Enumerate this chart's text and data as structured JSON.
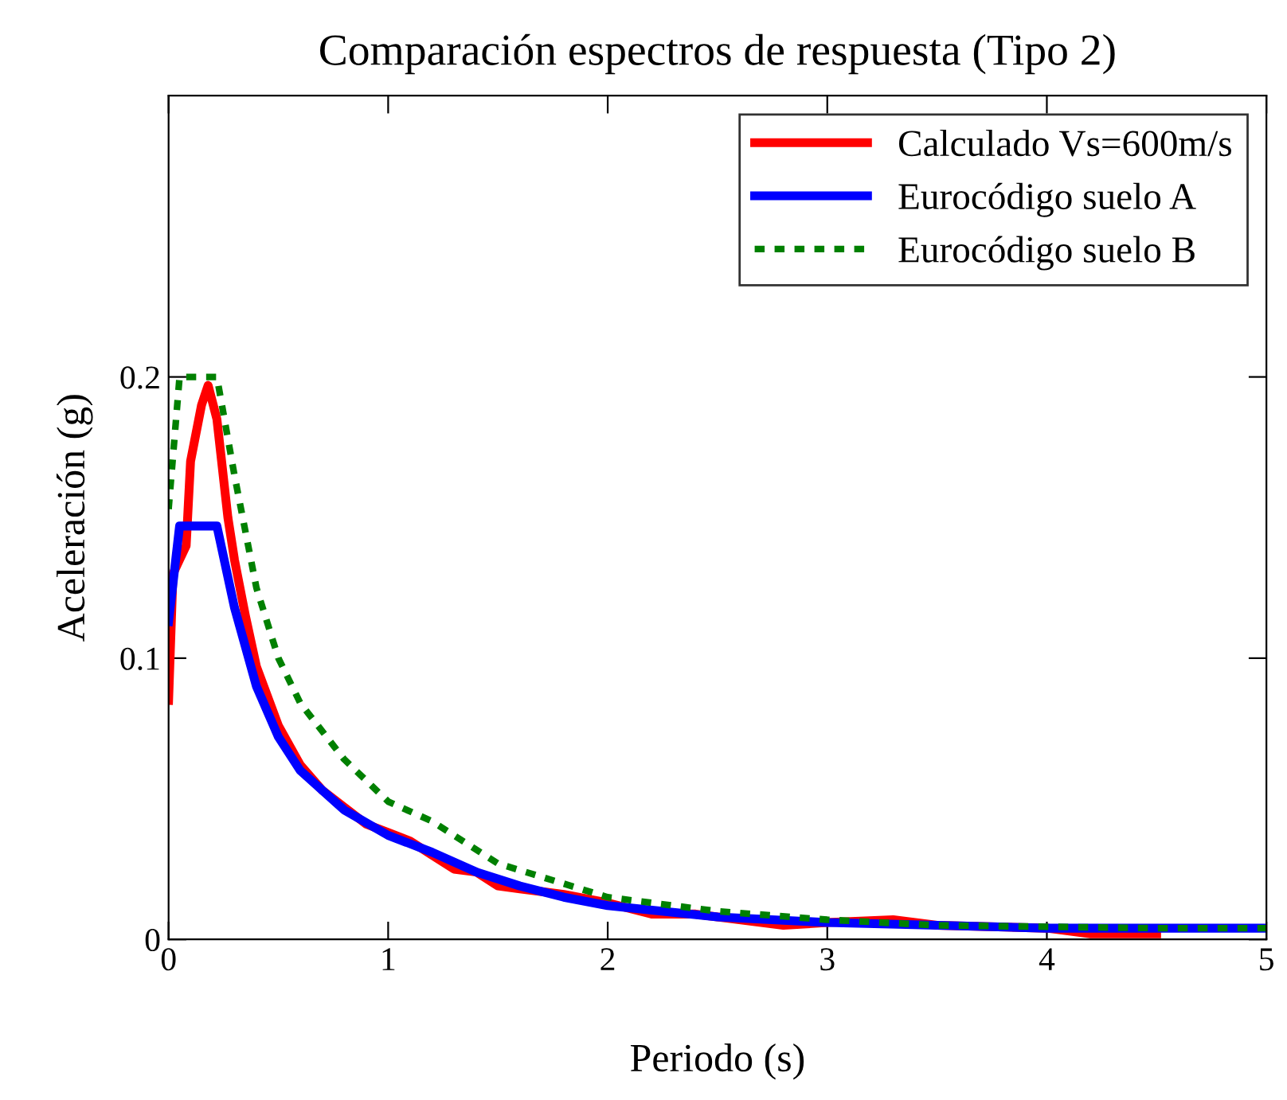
{
  "chart_data": {
    "type": "line",
    "title": "Comparación espectros de respuesta (Tipo 2)",
    "xlabel": "Periodo (s)",
    "ylabel": "Aceleración (g)",
    "xlim": [
      0,
      5
    ],
    "ylim": [
      0,
      0.3
    ],
    "xticks": [
      0,
      1,
      2,
      3,
      4,
      5
    ],
    "yticks": [
      0,
      0.1,
      0.2
    ],
    "legend": "top right",
    "grid": false,
    "series": [
      {
        "name": "Calculado Vs=600m/s",
        "color": "#ff0000",
        "line_style": "solid",
        "x": [
          0,
          0.02,
          0.05,
          0.08,
          0.1,
          0.15,
          0.18,
          0.22,
          0.27,
          0.3,
          0.35,
          0.4,
          0.5,
          0.6,
          0.7,
          0.8,
          0.9,
          1.0,
          1.1,
          1.2,
          1.3,
          1.4,
          1.5,
          1.6,
          1.8,
          2.0,
          2.2,
          2.4,
          2.6,
          2.8,
          3.0,
          3.3,
          3.5,
          4.0,
          4.2,
          4.5
        ],
        "values": [
          0.085,
          0.13,
          0.135,
          0.14,
          0.17,
          0.19,
          0.197,
          0.185,
          0.15,
          0.135,
          0.115,
          0.097,
          0.076,
          0.062,
          0.053,
          0.047,
          0.041,
          0.038,
          0.035,
          0.03,
          0.025,
          0.024,
          0.019,
          0.018,
          0.016,
          0.013,
          0.009,
          0.009,
          0.007,
          0.005,
          0.006,
          0.007,
          0.005,
          0.004,
          0.002,
          0.002
        ]
      },
      {
        "name": "Eurocódigo suelo A",
        "color": "#0000ff",
        "line_style": "solid",
        "x": [
          0,
          0.05,
          0.22,
          0.3,
          0.4,
          0.5,
          0.6,
          0.8,
          1.0,
          1.2,
          1.4,
          1.6,
          1.8,
          2.0,
          2.5,
          3,
          3.5,
          4,
          4.5,
          5
        ],
        "values": [
          0.113,
          0.147,
          0.147,
          0.118,
          0.09,
          0.072,
          0.06,
          0.046,
          0.037,
          0.031,
          0.024,
          0.019,
          0.015,
          0.012,
          0.008,
          0.006,
          0.005,
          0.004,
          0.004,
          0.004
        ]
      },
      {
        "name": "Eurocódigo suelo B",
        "color": "#008000",
        "line_style": "dotted",
        "x": [
          0,
          0.05,
          0.22,
          0.3,
          0.4,
          0.5,
          0.6,
          0.8,
          1.0,
          1.2,
          1.5,
          2.0,
          2.5,
          3,
          3.5,
          4,
          4.5,
          5
        ],
        "values": [
          0.153,
          0.2,
          0.2,
          0.165,
          0.125,
          0.1,
          0.084,
          0.064,
          0.049,
          0.042,
          0.027,
          0.015,
          0.01,
          0.007,
          0.005,
          0.0045,
          0.004,
          0.004
        ]
      }
    ]
  }
}
